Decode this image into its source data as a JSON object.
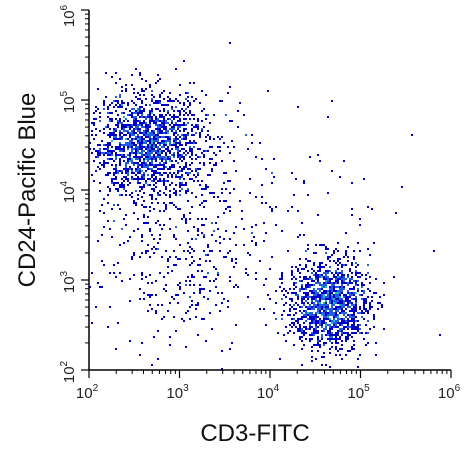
{
  "chart_data": {
    "type": "scatter",
    "title": "",
    "xlabel": "CD3-FITC",
    "ylabel": "CD24-Pacific Blue",
    "xscale": "log",
    "yscale": "log",
    "xlim": [
      100,
      1000000
    ],
    "ylim": [
      100,
      1000000
    ],
    "grid": false,
    "legend": "none",
    "x_ticks": [
      {
        "value": 100,
        "base": "10",
        "exp": "2"
      },
      {
        "value": 1000,
        "base": "10",
        "exp": "3"
      },
      {
        "value": 10000,
        "base": "10",
        "exp": "4"
      },
      {
        "value": 100000,
        "base": "10",
        "exp": "5"
      },
      {
        "value": 1000000,
        "base": "10",
        "exp": "6"
      }
    ],
    "y_ticks": [
      {
        "value": 100,
        "base": "10",
        "exp": "2"
      },
      {
        "value": 1000,
        "base": "10",
        "exp": "3"
      },
      {
        "value": 10000,
        "base": "10",
        "exp": "4"
      },
      {
        "value": 100000,
        "base": "10",
        "exp": "5"
      },
      {
        "value": 1000000,
        "base": "10",
        "exp": "6"
      }
    ],
    "colormap": [
      "#0000c8",
      "#1f5fe0",
      "#20b8b8",
      "#3ed94a",
      "#e6e600",
      "#ff2000"
    ],
    "populations": [
      {
        "center": [
          450,
          32000
        ],
        "spread_log10": [
          0.32,
          0.28
        ],
        "count": 1700
      },
      {
        "center": [
          45000,
          550
        ],
        "spread_log10": [
          0.22,
          0.25
        ],
        "count": 1400
      },
      {
        "center": [
          900,
          1800
        ],
        "spread_log10": [
          0.45,
          0.55
        ],
        "count": 380
      },
      {
        "center": [
          8000,
          8000
        ],
        "spread_log10": [
          0.7,
          0.7
        ],
        "count": 160
      }
    ]
  }
}
